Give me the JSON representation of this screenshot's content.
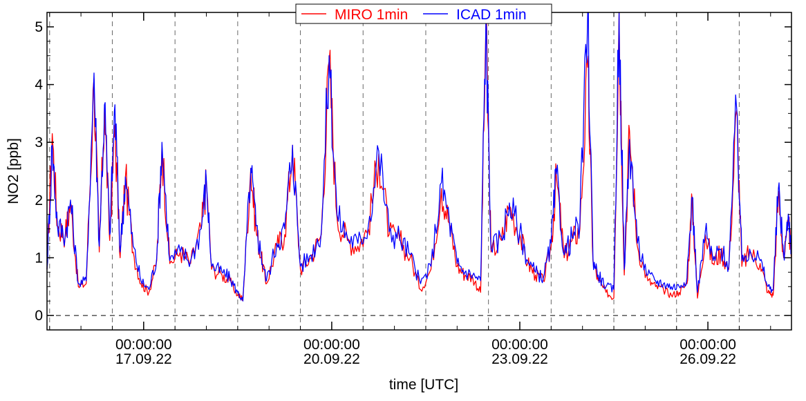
{
  "chart_data": {
    "type": "line",
    "xlabel": "time [UTC]",
    "ylabel": "NO2 [ppb]",
    "x_unit": "days (date axis)",
    "xlim": [
      "2022-09-15 11:00",
      "2022-09-27 08:00"
    ],
    "ylim": [
      -0.25,
      5.25
    ],
    "yticks": [
      0,
      1,
      2,
      3,
      4,
      5
    ],
    "ytick_labels": [
      "0",
      "1",
      "2",
      "3",
      "4",
      "5"
    ],
    "xticks": [
      {
        "time": "00:00:00",
        "date": "17.09.22"
      },
      {
        "time": "00:00:00",
        "date": "20.09.22"
      },
      {
        "time": "00:00:00",
        "date": "23.09.22"
      },
      {
        "time": "00:00:00",
        "date": "26.09.22"
      }
    ],
    "grid": {
      "vertical_dashed": "every 1 day",
      "horizontal_dashed": "y = 0"
    },
    "legend_placement": "top-center",
    "series": [
      {
        "name": "MIRO 1min",
        "color": "#ff0000",
        "points": [
          [
            "2022-09-15 11:00",
            0.8
          ],
          [
            "2022-09-15 13:00",
            3.15
          ],
          [
            "2022-09-15 15:00",
            1.55
          ],
          [
            "2022-09-15 18:00",
            1.4
          ],
          [
            "2022-09-15 20:00",
            1.95
          ],
          [
            "2022-09-15 23:00",
            0.5
          ],
          [
            "2022-09-16 02:00",
            0.55
          ],
          [
            "2022-09-16 05:00",
            4.1
          ],
          [
            "2022-09-16 07:00",
            1.1
          ],
          [
            "2022-09-16 09:00",
            3.6
          ],
          [
            "2022-09-16 11:00",
            1.3
          ],
          [
            "2022-09-16 13:00",
            3.3
          ],
          [
            "2022-09-16 15:00",
            1.0
          ],
          [
            "2022-09-16 17:00",
            2.4
          ],
          [
            "2022-09-16 20:00",
            1.1
          ],
          [
            "2022-09-16 23:00",
            0.55
          ],
          [
            "2022-09-17 02:00",
            0.4
          ],
          [
            "2022-09-17 05:00",
            0.95
          ],
          [
            "2022-09-17 07:00",
            2.95
          ],
          [
            "2022-09-17 10:00",
            0.9
          ],
          [
            "2022-09-17 14:00",
            1.1
          ],
          [
            "2022-09-17 18:00",
            0.9
          ],
          [
            "2022-09-17 22:00",
            1.5
          ],
          [
            "2022-09-18 00:00",
            2.3
          ],
          [
            "2022-09-18 02:00",
            0.8
          ],
          [
            "2022-09-18 06:00",
            0.7
          ],
          [
            "2022-09-18 09:00",
            0.6
          ],
          [
            "2022-09-18 12:00",
            0.35
          ],
          [
            "2022-09-18 14:00",
            0.3
          ],
          [
            "2022-09-18 17:00",
            2.55
          ],
          [
            "2022-09-18 19:00",
            1.5
          ],
          [
            "2022-09-18 21:00",
            1.0
          ],
          [
            "2022-09-18 23:00",
            0.55
          ],
          [
            "2022-09-19 03:00",
            1.2
          ],
          [
            "2022-09-19 06:00",
            1.4
          ],
          [
            "2022-09-19 09:00",
            2.95
          ],
          [
            "2022-09-19 12:00",
            0.8
          ],
          [
            "2022-09-19 16:00",
            1.0
          ],
          [
            "2022-09-19 20:00",
            1.4
          ],
          [
            "2022-09-19 23:00",
            4.4
          ],
          [
            "2022-09-20 02:00",
            1.7
          ],
          [
            "2022-09-20 06:00",
            1.3
          ],
          [
            "2022-09-20 10:00",
            1.2
          ],
          [
            "2022-09-20 14:00",
            1.5
          ],
          [
            "2022-09-20 18:00",
            2.8
          ],
          [
            "2022-09-20 22:00",
            1.4
          ],
          [
            "2022-09-21 02:00",
            1.3
          ],
          [
            "2022-09-21 06:00",
            1.0
          ],
          [
            "2022-09-21 10:00",
            0.45
          ],
          [
            "2022-09-21 14:00",
            0.8
          ],
          [
            "2022-09-21 18:00",
            2.2
          ],
          [
            "2022-09-21 21:00",
            1.6
          ],
          [
            "2022-09-22 00:00",
            0.85
          ],
          [
            "2022-09-22 03:00",
            0.7
          ],
          [
            "2022-09-22 06:00",
            0.65
          ],
          [
            "2022-09-22 09:00",
            0.4
          ],
          [
            "2022-09-22 11:00",
            5.0
          ],
          [
            "2022-09-22 13:00",
            1.1
          ],
          [
            "2022-09-22 17:00",
            1.3
          ],
          [
            "2022-09-22 20:00",
            1.9
          ],
          [
            "2022-09-23 00:00",
            1.4
          ],
          [
            "2022-09-23 03:00",
            0.9
          ],
          [
            "2022-09-23 06:00",
            0.7
          ],
          [
            "2022-09-23 09:00",
            0.6
          ],
          [
            "2022-09-23 12:00",
            1.2
          ],
          [
            "2022-09-23 14:00",
            2.4
          ],
          [
            "2022-09-23 17:00",
            1.0
          ],
          [
            "2022-09-23 20:00",
            1.3
          ],
          [
            "2022-09-23 23:00",
            1.5
          ],
          [
            "2022-09-24 02:00",
            4.3
          ],
          [
            "2022-09-24 04:00",
            0.95
          ],
          [
            "2022-09-24 06:00",
            0.6
          ],
          [
            "2022-09-24 09:00",
            0.4
          ],
          [
            "2022-09-24 12:00",
            0.3
          ],
          [
            "2022-09-24 14:00",
            5.25
          ],
          [
            "2022-09-24 16:00",
            0.7
          ],
          [
            "2022-09-24 18:00",
            3.2
          ],
          [
            "2022-09-24 21:00",
            1.2
          ],
          [
            "2022-09-25 01:00",
            0.6
          ],
          [
            "2022-09-25 04:00",
            0.5
          ],
          [
            "2022-09-25 07:00",
            0.45
          ],
          [
            "2022-09-25 10:00",
            0.35
          ],
          [
            "2022-09-25 13:00",
            0.4
          ],
          [
            "2022-09-25 16:00",
            0.55
          ],
          [
            "2022-09-25 18:00",
            2.0
          ],
          [
            "2022-09-25 20:00",
            0.3
          ],
          [
            "2022-09-25 23:00",
            1.4
          ],
          [
            "2022-09-26 02:00",
            0.9
          ],
          [
            "2022-09-26 05:00",
            1.1
          ],
          [
            "2022-09-26 08:00",
            0.8
          ],
          [
            "2022-09-26 11:00",
            3.55
          ],
          [
            "2022-09-26 13:00",
            0.85
          ],
          [
            "2022-09-26 16:00",
            1.1
          ],
          [
            "2022-09-26 20:00",
            0.9
          ],
          [
            "2022-09-26 23:00",
            0.4
          ],
          [
            "2022-09-27 01:00",
            0.35
          ],
          [
            "2022-09-27 03:00",
            2.1
          ],
          [
            "2022-09-27 05:00",
            1.0
          ],
          [
            "2022-09-27 07:00",
            1.55
          ],
          [
            "2022-09-27 08:00",
            1.0
          ]
        ]
      },
      {
        "name": "ICAD 1min",
        "color": "#0000ff",
        "points": [
          [
            "2022-09-15 11:00",
            0.8
          ],
          [
            "2022-09-15 13:00",
            2.95
          ],
          [
            "2022-09-15 15:00",
            1.55
          ],
          [
            "2022-09-15 18:00",
            1.4
          ],
          [
            "2022-09-15 20:00",
            2.0
          ],
          [
            "2022-09-15 23:00",
            0.55
          ],
          [
            "2022-09-16 02:00",
            0.6
          ],
          [
            "2022-09-16 05:00",
            4.2
          ],
          [
            "2022-09-16 07:00",
            1.2
          ],
          [
            "2022-09-16 09:00",
            3.65
          ],
          [
            "2022-09-16 11:00",
            1.4
          ],
          [
            "2022-09-16 13:00",
            3.65
          ],
          [
            "2022-09-16 15:00",
            1.1
          ],
          [
            "2022-09-16 17:00",
            2.4
          ],
          [
            "2022-09-16 20:00",
            1.2
          ],
          [
            "2022-09-16 23:00",
            0.6
          ],
          [
            "2022-09-17 02:00",
            0.45
          ],
          [
            "2022-09-17 05:00",
            1.0
          ],
          [
            "2022-09-17 07:00",
            3.0
          ],
          [
            "2022-09-17 10:00",
            0.95
          ],
          [
            "2022-09-17 14:00",
            1.1
          ],
          [
            "2022-09-17 18:00",
            0.95
          ],
          [
            "2022-09-17 22:00",
            1.5
          ],
          [
            "2022-09-18 00:00",
            2.35
          ],
          [
            "2022-09-18 02:00",
            0.85
          ],
          [
            "2022-09-18 06:00",
            0.75
          ],
          [
            "2022-09-18 09:00",
            0.65
          ],
          [
            "2022-09-18 12:00",
            0.4
          ],
          [
            "2022-09-18 14:00",
            0.25
          ],
          [
            "2022-09-18 17:00",
            2.55
          ],
          [
            "2022-09-18 19:00",
            1.55
          ],
          [
            "2022-09-18 21:00",
            1.05
          ],
          [
            "2022-09-18 23:00",
            0.6
          ],
          [
            "2022-09-19 03:00",
            1.25
          ],
          [
            "2022-09-19 06:00",
            1.5
          ],
          [
            "2022-09-19 09:00",
            2.95
          ],
          [
            "2022-09-19 12:00",
            0.85
          ],
          [
            "2022-09-19 16:00",
            1.05
          ],
          [
            "2022-09-19 20:00",
            1.45
          ],
          [
            "2022-09-19 23:00",
            4.5
          ],
          [
            "2022-09-20 02:00",
            1.75
          ],
          [
            "2022-09-20 06:00",
            1.35
          ],
          [
            "2022-09-20 10:00",
            1.25
          ],
          [
            "2022-09-20 14:00",
            1.55
          ],
          [
            "2022-09-20 18:00",
            2.85
          ],
          [
            "2022-09-20 22:00",
            1.45
          ],
          [
            "2022-09-21 02:00",
            1.35
          ],
          [
            "2022-09-21 06:00",
            1.05
          ],
          [
            "2022-09-21 10:00",
            0.55
          ],
          [
            "2022-09-21 14:00",
            0.85
          ],
          [
            "2022-09-21 18:00",
            2.3
          ],
          [
            "2022-09-21 21:00",
            1.65
          ],
          [
            "2022-09-22 00:00",
            0.9
          ],
          [
            "2022-09-22 03:00",
            0.75
          ],
          [
            "2022-09-22 06:00",
            0.7
          ],
          [
            "2022-09-22 09:00",
            0.6
          ],
          [
            "2022-09-22 11:00",
            5.1
          ],
          [
            "2022-09-22 13:00",
            1.15
          ],
          [
            "2022-09-22 17:00",
            1.35
          ],
          [
            "2022-09-22 20:00",
            1.95
          ],
          [
            "2022-09-23 00:00",
            1.45
          ],
          [
            "2022-09-23 03:00",
            0.95
          ],
          [
            "2022-09-23 06:00",
            0.75
          ],
          [
            "2022-09-23 09:00",
            0.65
          ],
          [
            "2022-09-23 12:00",
            1.25
          ],
          [
            "2022-09-23 14:00",
            2.45
          ],
          [
            "2022-09-23 17:00",
            1.05
          ],
          [
            "2022-09-23 20:00",
            1.35
          ],
          [
            "2022-09-23 23:00",
            1.6
          ],
          [
            "2022-09-24 02:00",
            5.25
          ],
          [
            "2022-09-24 04:00",
            1.0
          ],
          [
            "2022-09-24 06:00",
            0.7
          ],
          [
            "2022-09-24 09:00",
            0.5
          ],
          [
            "2022-09-24 12:00",
            0.45
          ],
          [
            "2022-09-24 14:00",
            5.25
          ],
          [
            "2022-09-24 16:00",
            0.8
          ],
          [
            "2022-09-24 18:00",
            3.05
          ],
          [
            "2022-09-24 21:00",
            1.25
          ],
          [
            "2022-09-25 01:00",
            0.7
          ],
          [
            "2022-09-25 04:00",
            0.6
          ],
          [
            "2022-09-25 07:00",
            0.55
          ],
          [
            "2022-09-25 10:00",
            0.5
          ],
          [
            "2022-09-25 13:00",
            0.5
          ],
          [
            "2022-09-25 16:00",
            0.65
          ],
          [
            "2022-09-25 18:00",
            2.05
          ],
          [
            "2022-09-25 20:00",
            0.4
          ],
          [
            "2022-09-25 23:00",
            1.45
          ],
          [
            "2022-09-26 02:00",
            0.95
          ],
          [
            "2022-09-26 05:00",
            1.15
          ],
          [
            "2022-09-26 08:00",
            0.85
          ],
          [
            "2022-09-26 11:00",
            3.6
          ],
          [
            "2022-09-26 13:00",
            0.95
          ],
          [
            "2022-09-26 16:00",
            1.15
          ],
          [
            "2022-09-26 20:00",
            0.95
          ],
          [
            "2022-09-26 23:00",
            0.5
          ],
          [
            "2022-09-27 01:00",
            0.45
          ],
          [
            "2022-09-27 03:00",
            2.2
          ],
          [
            "2022-09-27 05:00",
            1.05
          ],
          [
            "2022-09-27 07:00",
            1.7
          ],
          [
            "2022-09-27 08:00",
            1.1
          ]
        ]
      }
    ]
  }
}
